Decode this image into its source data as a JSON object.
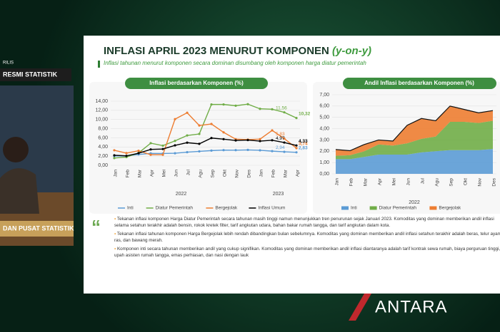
{
  "overlay": {
    "badge_small": "RILIS",
    "badge": "RESMI STATISTIK",
    "banner": "DAN PUSAT STATISTIK",
    "agency": "ANTARA"
  },
  "slide": {
    "title": "INFLASI APRIL 2023 MENURUT KOMPONEN",
    "title_tag": "(y-on-y)",
    "subtitle": "Inflasi tahunan menurut komponen secara dominan disumbang oleh komponen harga diatur pemerintah",
    "bullets": [
      "Tekanan inflasi komponen Harga Diatur Pemerintah secara tahunan masih tinggi namun menunjukkan tren penurunan sejak Januari 2023. Komoditas yang dominan memberikan andil inflasi selama setahun terakhir adalah bensin, rokok kretek filter, tarif angkutan udara, bahan bakar rumah tangga, dan tarif angkutan dalam kota.",
      "Tekanan inflasi tahunan komponen Harga Bergejolak lebih rendah dibandingkan bulan sebelumnya. Komoditas yang dominan memberikan andil inflasi setahun terakhir adalah beras, telur ayam ras, dan bawang merah.",
      "Komponen inti secara tahunan memberikan andil yang cukup signifikan. Komoditas yang dominan memberikan andil inflasi diantaranya adalah tarif kontrak sewa rumah, biaya perguruan tinggi, upah asisten rumah tangga, emas perhiasan, dan nasi dengan lauk"
    ]
  },
  "chart_data": [
    {
      "type": "line",
      "title": "Inflasi berdasarkan Komponen (%)",
      "categories": [
        "Jan",
        "Feb",
        "Mar",
        "Apr",
        "Mei",
        "Jun",
        "Jul",
        "Agu",
        "Sep",
        "Okt",
        "Nov",
        "Des",
        "Jan",
        "Feb",
        "Mar",
        "Apr"
      ],
      "groups": [
        {
          "label": "2022",
          "from": 0,
          "to": 11
        },
        {
          "label": "2023",
          "from": 12,
          "to": 15
        }
      ],
      "ylim": [
        0,
        14
      ],
      "yticks": [
        {
          "value": 0,
          "label": "0,00"
        },
        {
          "value": 2,
          "label": "2,00"
        },
        {
          "value": 4,
          "label": "4,00"
        },
        {
          "value": 6,
          "label": "6,00"
        },
        {
          "value": 8,
          "label": "8,00"
        },
        {
          "value": 10,
          "label": "10,00"
        },
        {
          "value": 12,
          "label": "12,00"
        },
        {
          "value": 14,
          "label": "14,00"
        }
      ],
      "series": [
        {
          "name": "Inti",
          "color": "#5b9bd5",
          "values": [
            2.03,
            2.03,
            2.37,
            2.6,
            2.58,
            2.63,
            2.86,
            3.04,
            3.21,
            3.31,
            3.3,
            3.36,
            3.27,
            3.09,
            2.94,
            2.83
          ],
          "value_labels": [
            null,
            null,
            null,
            null,
            null,
            null,
            null,
            null,
            null,
            null,
            null,
            null,
            null,
            null,
            "2,94",
            "2,83"
          ]
        },
        {
          "name": "Diatur Pemerintah",
          "color": "#70ad47",
          "values": [
            1.58,
            1.79,
            2.69,
            4.83,
            4.29,
            5.33,
            6.51,
            6.84,
            13.28,
            13.28,
            13.01,
            13.34,
            12.33,
            12.24,
            11.56,
            10.32
          ],
          "value_labels": [
            null,
            null,
            null,
            null,
            null,
            null,
            null,
            null,
            null,
            null,
            null,
            null,
            null,
            null,
            "11,56",
            "10,32"
          ]
        },
        {
          "name": "Bergejolak",
          "color": "#ed7d31",
          "values": [
            3.28,
            2.66,
            3.17,
            2.3,
            2.3,
            10.07,
            11.47,
            8.69,
            9.02,
            7.19,
            5.7,
            5.61,
            5.71,
            7.62,
            5.83,
            3.74
          ],
          "value_labels": [
            null,
            null,
            null,
            null,
            null,
            null,
            null,
            null,
            null,
            null,
            null,
            null,
            null,
            null,
            "5,83",
            "3,74"
          ]
        },
        {
          "name": "Inflasi Umum",
          "color": "#000000",
          "values": [
            2.18,
            2.06,
            2.64,
            3.47,
            3.55,
            4.35,
            4.94,
            4.69,
            5.95,
            5.71,
            5.42,
            5.51,
            5.28,
            5.47,
            4.97,
            4.33
          ],
          "value_labels": [
            null,
            null,
            null,
            null,
            null,
            null,
            null,
            null,
            null,
            null,
            null,
            null,
            null,
            null,
            "4,97",
            "4,33"
          ]
        }
      ]
    },
    {
      "type": "stacked_area",
      "title": "Andil Inflasi berdasarkan Komponen (%)",
      "categories": [
        "Jan",
        "Feb",
        "Mar",
        "Apr",
        "Mei",
        "Jun",
        "Jul",
        "Agu",
        "Sep",
        "Okt",
        "Nov",
        "Des"
      ],
      "groups": [
        {
          "label": "2022",
          "from": 0,
          "to": 11
        }
      ],
      "ylim": [
        0,
        7
      ],
      "yticks": [
        {
          "value": 0,
          "label": "0,00"
        },
        {
          "value": 1,
          "label": "1,00"
        },
        {
          "value": 2,
          "label": "2,00"
        },
        {
          "value": 3,
          "label": "3,00"
        },
        {
          "value": 4,
          "label": "4,00"
        },
        {
          "value": 5,
          "label": "5,00"
        },
        {
          "value": 6,
          "label": "6,00"
        },
        {
          "value": 7,
          "label": "7,00"
        }
      ],
      "series": [
        {
          "name": "Inti",
          "color": "#5b9bd5",
          "values": [
            1.3,
            1.3,
            1.5,
            1.7,
            1.7,
            1.7,
            1.9,
            2.0,
            2.1,
            2.1,
            2.1,
            2.2
          ]
        },
        {
          "name": "Diatur Pemerintah",
          "color": "#70ad47",
          "values": [
            0.3,
            0.35,
            0.5,
            0.9,
            0.8,
            1.0,
            1.2,
            1.3,
            2.5,
            2.5,
            2.4,
            2.5
          ]
        },
        {
          "name": "Bergejolak",
          "color": "#ed7d31",
          "values": [
            0.55,
            0.4,
            0.6,
            0.4,
            0.4,
            1.6,
            1.8,
            1.4,
            1.4,
            1.1,
            0.9,
            0.9
          ]
        }
      ]
    }
  ]
}
